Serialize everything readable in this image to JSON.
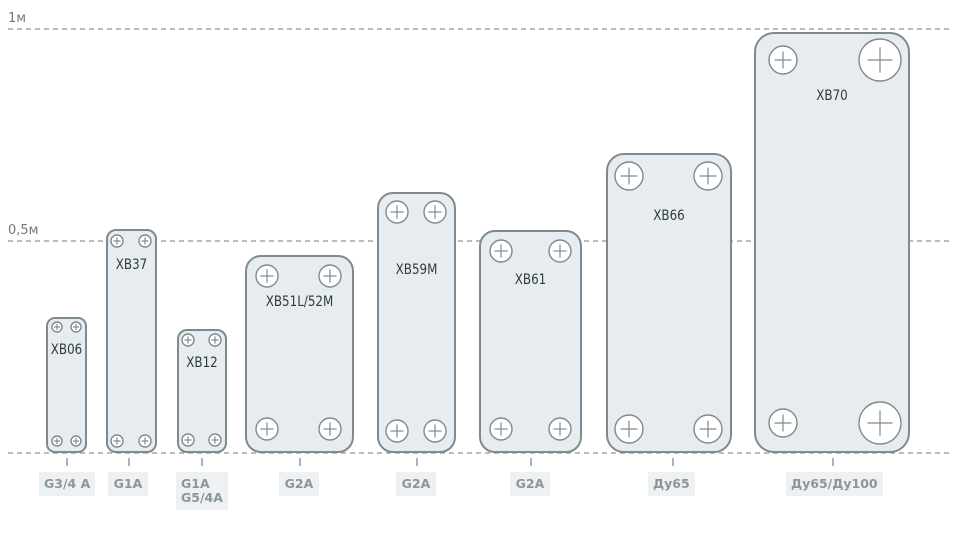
{
  "scale": {
    "top_label": "1м",
    "mid_label": "0,5м"
  },
  "plates": [
    {
      "id": "xb06",
      "label": "XB06",
      "connection": [
        "G3/4 A"
      ]
    },
    {
      "id": "xb37",
      "label": "XB37",
      "connection": [
        "G1A"
      ]
    },
    {
      "id": "xb12",
      "label": "XB12",
      "connection": [
        "G1A",
        "G5/4A"
      ]
    },
    {
      "id": "xb51",
      "label": "XB51L/52M",
      "connection": [
        "G2A"
      ]
    },
    {
      "id": "xb59",
      "label": "XB59M",
      "connection": [
        "G2A"
      ]
    },
    {
      "id": "xb61",
      "label": "XB61",
      "connection": [
        "G2A"
      ]
    },
    {
      "id": "xb66",
      "label": "XB66",
      "connection": [
        "Ду65"
      ]
    },
    {
      "id": "xb70",
      "label": "XB70",
      "connection": [
        "Ду65/Ду100"
      ]
    }
  ],
  "colors": {
    "plate_fill": "#e6ecef",
    "plate_stroke": "#7f8a8f",
    "guide_line": "#8e979b",
    "tag_bg": "#edf1f3",
    "tag_text": "#8a969c"
  }
}
